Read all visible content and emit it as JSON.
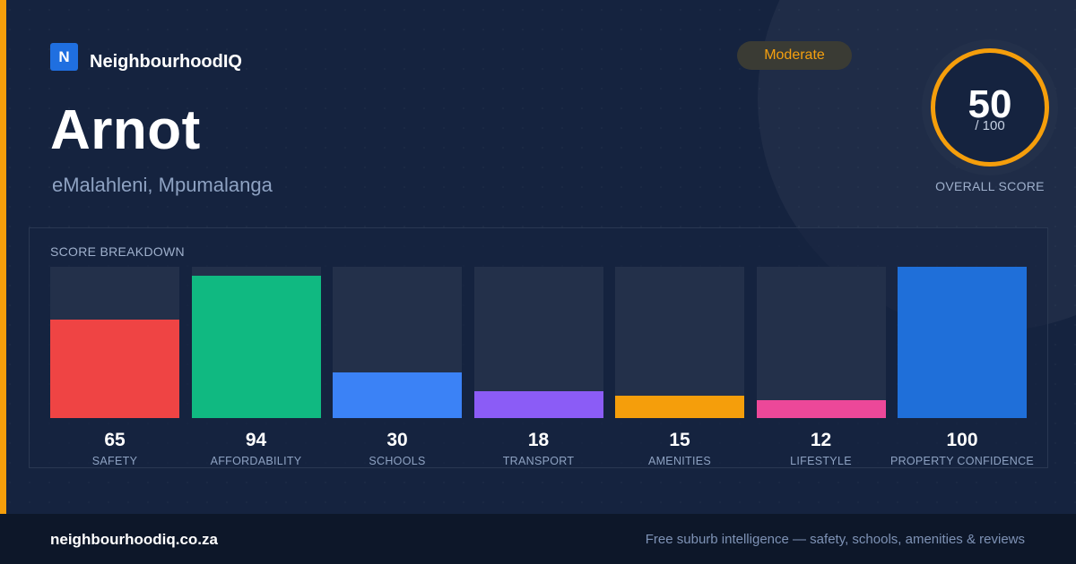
{
  "brand": {
    "logo_letter": "N",
    "name": "NeighbourhoodIQ"
  },
  "suburb": {
    "name": "Arnot",
    "location": "eMalahleni, Mpumalanga"
  },
  "rating": {
    "badge": "Moderate",
    "badge_color": "#f5a00f"
  },
  "overall": {
    "score": "50",
    "max": "/ 100",
    "label": "OVERALL SCORE",
    "ring_color": "#f59e0b"
  },
  "accent_color": "#f59e0b",
  "breakdown": {
    "title": "SCORE BREAKDOWN"
  },
  "chart_data": {
    "type": "bar",
    "title": "SCORE BREAKDOWN",
    "categories": [
      "SAFETY",
      "AFFORDABILITY",
      "SCHOOLS",
      "TRANSPORT",
      "AMENITIES",
      "LIFESTYLE",
      "PROPERTY CONFIDENCE"
    ],
    "values": [
      65,
      94,
      30,
      18,
      15,
      12,
      100
    ],
    "colors": [
      "#ef4444",
      "#10b981",
      "#3b82f6",
      "#8b5cf6",
      "#f59e0b",
      "#ec4899",
      "#1f6fd9"
    ],
    "ylim": [
      0,
      100
    ],
    "xlabel": "",
    "ylabel": ""
  },
  "footer": {
    "url": "neighbourhoodiq.co.za",
    "tagline": "Free suburb intelligence — safety, schools, amenities & reviews"
  }
}
